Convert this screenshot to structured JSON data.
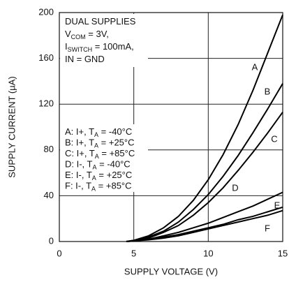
{
  "chart_data": {
    "type": "line",
    "x_label": "SUPPLY VOLTAGE (V)",
    "y_label": "SUPPLY CURRENT (µA)",
    "conditions": [
      [
        "DUAL SUPPLIES"
      ],
      [
        "V",
        "COM",
        " = 3V,"
      ],
      [
        "I",
        "SWITCH",
        " = 100mA,"
      ],
      [
        "IN = GND"
      ]
    ],
    "x": [
      4.5,
      5,
      6,
      7,
      8,
      9,
      10,
      11,
      12,
      13,
      14,
      15
    ],
    "series": [
      {
        "name": "A",
        "description": [
          "A: I+, T",
          "A",
          " = -40°C"
        ],
        "color": "#000000",
        "values": [
          0,
          1,
          5,
          12,
          22,
          36,
          54,
          76,
          102,
          132,
          165,
          198
        ]
      },
      {
        "name": "B",
        "description": [
          "B: I+, T",
          "A",
          " = +25°C"
        ],
        "color": "#000000",
        "values": [
          0,
          1,
          4,
          9,
          17,
          28,
          41,
          57,
          75,
          95,
          116,
          138
        ]
      },
      {
        "name": "C",
        "description": [
          "C: I+, T",
          "A",
          " = +85°C"
        ],
        "color": "#000000",
        "values": [
          0,
          1,
          3,
          8,
          14,
          23,
          34,
          47,
          62,
          78,
          95,
          113
        ]
      },
      {
        "name": "D",
        "description": [
          "D: I-, T",
          "A",
          " = -40°C"
        ],
        "color": "#000000",
        "values": [
          0,
          0.5,
          2,
          5,
          8,
          12,
          16,
          21,
          26,
          31,
          37,
          43
        ]
      },
      {
        "name": "E",
        "description": [
          "E: I-, T",
          "A",
          " = +25°C"
        ],
        "color": "#000000",
        "values": [
          0,
          0.5,
          2,
          4,
          6,
          9,
          12,
          15,
          19,
          22,
          26,
          30
        ]
      },
      {
        "name": "F",
        "description": [
          "F: I-, T",
          "A",
          " = +85°C"
        ],
        "color": "#000000",
        "values": [
          0,
          0.5,
          1.5,
          3,
          5,
          8,
          11,
          14,
          17,
          20,
          23,
          27
        ]
      }
    ],
    "xlim": [
      0,
      15
    ],
    "xticks": [
      0,
      5,
      10,
      15
    ],
    "ylim": [
      0,
      200
    ],
    "yticks": [
      0,
      40,
      80,
      120,
      160,
      200
    ],
    "grid": true
  }
}
